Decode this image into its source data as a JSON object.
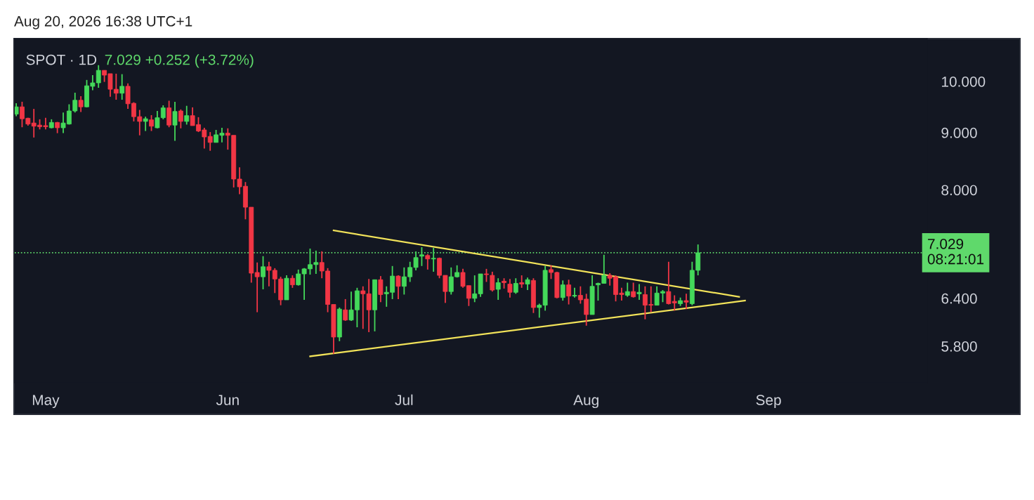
{
  "chart_data": {
    "type": "candlestick",
    "title": "SPOT · 1D",
    "subtitle": "7.029 +0.252 (+3.72%)",
    "annotations": [
      "Aug 20, 2026 16:38 UTC+1"
    ],
    "x": [
      "2026-04-26",
      "2026-04-27",
      "2026-04-28",
      "2026-04-29",
      "2026-04-30",
      "2026-05-01",
      "2026-05-02",
      "2026-05-03",
      "2026-05-04",
      "2026-05-05",
      "2026-05-06",
      "2026-05-07",
      "2026-05-08",
      "2026-05-09",
      "2026-05-10",
      "2026-05-11",
      "2026-05-12",
      "2026-05-13",
      "2026-05-14",
      "2026-05-15",
      "2026-05-16",
      "2026-05-17",
      "2026-05-18",
      "2026-05-19",
      "2026-05-20",
      "2026-05-21",
      "2026-05-22",
      "2026-05-23",
      "2026-05-24",
      "2026-05-25",
      "2026-05-26",
      "2026-05-27",
      "2026-05-28",
      "2026-05-29",
      "2026-05-30",
      "2026-05-31",
      "2026-06-01",
      "2026-06-02",
      "2026-06-03",
      "2026-06-04",
      "2026-06-05",
      "2026-06-06",
      "2026-06-07",
      "2026-06-08",
      "2026-06-09",
      "2026-06-10",
      "2026-06-11",
      "2026-06-12",
      "2026-06-13",
      "2026-06-14",
      "2026-06-15",
      "2026-06-16",
      "2026-06-17",
      "2026-06-18",
      "2026-06-19",
      "2026-06-20",
      "2026-06-21",
      "2026-06-22",
      "2026-06-23",
      "2026-06-24",
      "2026-06-25",
      "2026-06-26",
      "2026-06-27",
      "2026-06-28",
      "2026-06-29",
      "2026-06-30",
      "2026-07-01",
      "2026-07-02",
      "2026-07-03",
      "2026-07-04",
      "2026-07-05",
      "2026-07-06",
      "2026-07-07",
      "2026-07-08",
      "2026-07-09",
      "2026-07-10",
      "2026-07-11",
      "2026-07-12",
      "2026-07-13",
      "2026-07-14",
      "2026-07-15",
      "2026-07-16",
      "2026-07-17",
      "2026-07-18",
      "2026-07-19",
      "2026-07-20",
      "2026-07-21",
      "2026-07-22",
      "2026-07-23",
      "2026-07-24",
      "2026-07-25",
      "2026-07-26",
      "2026-07-27",
      "2026-07-28",
      "2026-07-29",
      "2026-07-30",
      "2026-07-31",
      "2026-08-01",
      "2026-08-02",
      "2026-08-03",
      "2026-08-04",
      "2026-08-05",
      "2026-08-06",
      "2026-08-07",
      "2026-08-08",
      "2026-08-09",
      "2026-08-10",
      "2026-08-11",
      "2026-08-12",
      "2026-08-13",
      "2026-08-14",
      "2026-08-15",
      "2026-08-16",
      "2026-08-17",
      "2026-08-18",
      "2026-08-19",
      "2026-08-20"
    ],
    "ohlc": [
      [
        9.35,
        9.56,
        9.31,
        9.49
      ],
      [
        9.49,
        9.59,
        9.1,
        9.26
      ],
      [
        9.27,
        9.28,
        9.13,
        9.16
      ],
      [
        9.18,
        9.45,
        8.91,
        9.12
      ],
      [
        9.14,
        9.25,
        9.06,
        9.11
      ],
      [
        9.13,
        9.28,
        9.06,
        9.11
      ],
      [
        9.09,
        9.25,
        9.08,
        9.19
      ],
      [
        9.19,
        9.2,
        8.99,
        9.09
      ],
      [
        9.09,
        9.38,
        8.99,
        9.18
      ],
      [
        9.16,
        9.54,
        9.15,
        9.41
      ],
      [
        9.41,
        9.77,
        9.38,
        9.62
      ],
      [
        9.62,
        9.7,
        9.39,
        9.49
      ],
      [
        9.49,
        10.03,
        9.48,
        9.91
      ],
      [
        9.9,
        10.13,
        9.82,
        9.97
      ],
      [
        9.97,
        10.34,
        9.87,
        10.23
      ],
      [
        10.23,
        10.23,
        9.99,
        10.13
      ],
      [
        10.16,
        10.16,
        9.69,
        9.84
      ],
      [
        9.84,
        10.16,
        9.63,
        9.76
      ],
      [
        9.76,
        10.15,
        9.63,
        9.9
      ],
      [
        9.9,
        9.96,
        9.45,
        9.55
      ],
      [
        9.56,
        9.58,
        9.21,
        9.3
      ],
      [
        9.3,
        9.43,
        8.95,
        9.21
      ],
      [
        9.21,
        9.3,
        9.03,
        9.26
      ],
      [
        9.24,
        9.33,
        9.03,
        9.12
      ],
      [
        9.09,
        9.41,
        9.08,
        9.28
      ],
      [
        9.28,
        9.52,
        9.25,
        9.47
      ],
      [
        9.47,
        9.61,
        9.1,
        9.14
      ],
      [
        9.14,
        9.59,
        8.85,
        9.4
      ],
      [
        9.41,
        9.44,
        9.08,
        9.21
      ],
      [
        9.21,
        9.51,
        9.15,
        9.32
      ],
      [
        9.32,
        9.48,
        9.13,
        9.13
      ],
      [
        9.15,
        9.29,
        9.01,
        9.03
      ],
      [
        9.05,
        9.09,
        8.71,
        8.92
      ],
      [
        8.93,
        9.01,
        8.67,
        8.82
      ],
      [
        8.82,
        9.05,
        8.82,
        8.96
      ],
      [
        8.95,
        9.09,
        8.82,
        8.99
      ],
      [
        8.99,
        9.08,
        8.69,
        8.95
      ],
      [
        8.95,
        8.95,
        8.04,
        8.18
      ],
      [
        8.18,
        8.38,
        7.93,
        8.05
      ],
      [
        8.06,
        8.13,
        7.53,
        7.72
      ],
      [
        7.72,
        7.72,
        6.61,
        6.74
      ],
      [
        6.75,
        6.89,
        6.22,
        6.69
      ],
      [
        6.69,
        6.98,
        6.52,
        6.83
      ],
      [
        6.83,
        6.9,
        6.56,
        6.78
      ],
      [
        6.78,
        6.81,
        6.47,
        6.66
      ],
      [
        6.66,
        6.69,
        6.31,
        6.38
      ],
      [
        6.38,
        6.71,
        6.38,
        6.67
      ],
      [
        6.67,
        6.71,
        6.54,
        6.58
      ],
      [
        6.58,
        6.79,
        6.57,
        6.73
      ],
      [
        6.73,
        6.81,
        6.38,
        6.8
      ],
      [
        6.8,
        7.09,
        6.72,
        6.86
      ],
      [
        6.86,
        7.06,
        6.73,
        6.89
      ],
      [
        6.89,
        7.05,
        6.67,
        6.77
      ],
      [
        6.77,
        6.81,
        6.22,
        6.32
      ],
      [
        6.32,
        6.32,
        5.71,
        5.91
      ],
      [
        5.91,
        6.28,
        5.86,
        6.26
      ],
      [
        6.25,
        6.39,
        6.11,
        6.12
      ],
      [
        6.12,
        6.49,
        6.11,
        6.25
      ],
      [
        6.25,
        6.54,
        6.03,
        6.5
      ],
      [
        6.5,
        6.56,
        6.01,
        6.46
      ],
      [
        6.46,
        6.66,
        5.97,
        6.25
      ],
      [
        6.25,
        6.65,
        5.98,
        6.65
      ],
      [
        6.65,
        6.7,
        6.35,
        6.45
      ],
      [
        6.46,
        6.56,
        6.29,
        6.48
      ],
      [
        6.48,
        6.84,
        6.39,
        6.7
      ],
      [
        6.7,
        6.71,
        6.39,
        6.56
      ],
      [
        6.56,
        6.82,
        6.45,
        6.69
      ],
      [
        6.69,
        6.9,
        6.62,
        6.82
      ],
      [
        6.82,
        7.05,
        6.78,
        6.96
      ],
      [
        6.98,
        7.11,
        6.84,
        7.0
      ],
      [
        6.99,
        7.01,
        6.79,
        6.94
      ],
      [
        6.94,
        7.1,
        6.76,
        6.95
      ],
      [
        6.95,
        6.96,
        6.67,
        6.71
      ],
      [
        6.71,
        6.71,
        6.34,
        6.49
      ],
      [
        6.49,
        6.82,
        6.45,
        6.69
      ],
      [
        6.69,
        6.85,
        6.68,
        6.75
      ],
      [
        6.75,
        6.8,
        6.54,
        6.56
      ],
      [
        6.57,
        6.57,
        6.3,
        6.4
      ],
      [
        6.4,
        6.71,
        6.35,
        6.46
      ],
      [
        6.46,
        6.73,
        6.42,
        6.73
      ],
      [
        6.73,
        6.8,
        6.62,
        6.72
      ],
      [
        6.71,
        6.76,
        6.49,
        6.51
      ],
      [
        6.52,
        6.67,
        6.38,
        6.61
      ],
      [
        6.63,
        6.67,
        6.53,
        6.61
      ],
      [
        6.59,
        6.66,
        6.41,
        6.48
      ],
      [
        6.48,
        6.67,
        6.46,
        6.6
      ],
      [
        6.61,
        6.71,
        6.54,
        6.59
      ],
      [
        6.59,
        6.68,
        6.51,
        6.65
      ],
      [
        6.64,
        6.67,
        6.21,
        6.28
      ],
      [
        6.28,
        6.33,
        6.15,
        6.31
      ],
      [
        6.31,
        6.84,
        6.24,
        6.78
      ],
      [
        6.79,
        6.85,
        6.66,
        6.75
      ],
      [
        6.75,
        6.76,
        6.4,
        6.41
      ],
      [
        6.41,
        6.64,
        6.37,
        6.58
      ],
      [
        6.58,
        6.65,
        6.32,
        6.43
      ],
      [
        6.43,
        6.54,
        6.41,
        6.44
      ],
      [
        6.44,
        6.56,
        6.33,
        6.38
      ],
      [
        6.39,
        6.46,
        6.05,
        6.19
      ],
      [
        6.19,
        6.71,
        6.19,
        6.56
      ],
      [
        6.58,
        6.61,
        6.37,
        6.6
      ],
      [
        6.6,
        7.0,
        6.6,
        6.71
      ],
      [
        6.71,
        6.74,
        6.57,
        6.67
      ],
      [
        6.69,
        6.71,
        6.36,
        6.45
      ],
      [
        6.47,
        6.54,
        6.37,
        6.45
      ],
      [
        6.44,
        6.61,
        6.42,
        6.49
      ],
      [
        6.49,
        6.61,
        6.41,
        6.42
      ],
      [
        6.46,
        6.59,
        6.38,
        6.48
      ],
      [
        6.45,
        6.56,
        6.13,
        6.31
      ],
      [
        6.32,
        6.56,
        6.22,
        6.31
      ],
      [
        6.31,
        6.56,
        6.31,
        6.47
      ],
      [
        6.47,
        6.51,
        6.35,
        6.49
      ],
      [
        6.49,
        6.9,
        6.32,
        6.33
      ],
      [
        6.36,
        6.44,
        6.24,
        6.34
      ],
      [
        6.33,
        6.41,
        6.3,
        6.37
      ],
      [
        6.37,
        6.46,
        6.26,
        6.35
      ],
      [
        6.33,
        6.9,
        6.31,
        6.78
      ],
      [
        6.78,
        7.15,
        6.71,
        7.029
      ]
    ],
    "colors": [
      "#44d95a",
      "#f23645",
      "#f23645",
      "#f23645",
      "#f23645",
      "#f23645",
      "#44d95a",
      "#f23645",
      "#44d95a",
      "#44d95a",
      "#44d95a",
      "#f23645",
      "#44d95a",
      "#44d95a",
      "#44d95a",
      "#f23645",
      "#f23645",
      "#f23645",
      "#44d95a",
      "#f23645",
      "#f23645",
      "#f23645",
      "#44d95a",
      "#f23645",
      "#44d95a",
      "#44d95a",
      "#f23645",
      "#44d95a",
      "#f23645",
      "#44d95a",
      "#f23645",
      "#f23645",
      "#f23645",
      "#f23645",
      "#44d95a",
      "#44d95a",
      "#f23645",
      "#f23645",
      "#f23645",
      "#f23645",
      "#f23645",
      "#f23645",
      "#44d95a",
      "#f23645",
      "#f23645",
      "#f23645",
      "#44d95a",
      "#f23645",
      "#44d95a",
      "#44d95a",
      "#44d95a",
      "#44d95a",
      "#f23645",
      "#f23645",
      "#f23645",
      "#44d95a",
      "#f23645",
      "#44d95a",
      "#44d95a",
      "#f23645",
      "#f23645",
      "#44d95a",
      "#f23645",
      "#44d95a",
      "#44d95a",
      "#f23645",
      "#44d95a",
      "#44d95a",
      "#44d95a",
      "#44d95a",
      "#f23645",
      "#44d95a",
      "#f23645",
      "#f23645",
      "#44d95a",
      "#44d95a",
      "#f23645",
      "#f23645",
      "#44d95a",
      "#44d95a",
      "#f23645",
      "#f23645",
      "#44d95a",
      "#f23645",
      "#f23645",
      "#44d95a",
      "#f23645",
      "#44d95a",
      "#f23645",
      "#44d95a",
      "#44d95a",
      "#f23645",
      "#f23645",
      "#44d95a",
      "#f23645",
      "#44d95a",
      "#f23645",
      "#f23645",
      "#44d95a",
      "#44d95a",
      "#44d95a",
      "#f23645",
      "#f23645",
      "#f23645",
      "#44d95a",
      "#f23645",
      "#44d95a",
      "#f23645",
      "#f23645",
      "#44d95a",
      "#44d95a",
      "#f23645",
      "#f23645",
      "#44d95a",
      "#f23645",
      "#44d95a",
      "#44d95a"
    ],
    "series": [
      {
        "type": "line",
        "color": "#f2e35a",
        "x": [
          "2026-06-19",
          "2026-08-27"
        ],
        "values": [
          7.36,
          6.42
        ]
      },
      {
        "type": "line",
        "color": "#f2e35a",
        "x": [
          "2026-06-15",
          "2026-08-28"
        ],
        "values": [
          5.68,
          6.37
        ]
      }
    ],
    "ref_lines": [
      {
        "axis": "y",
        "value": 7.029,
        "label": "7.029\n08:21:01",
        "color": "#5fd96b",
        "line_style": "dotted"
      }
    ],
    "log": true,
    "xlim": [
      "2026-04-25T18:00",
      "2026-09-28"
    ],
    "xticks": [
      {
        "value": "2026-05-01",
        "label": "May"
      },
      {
        "value": "2026-06-01",
        "label": "Jun"
      },
      {
        "value": "2026-07-01",
        "label": "Jul"
      },
      {
        "value": "2026-08-01",
        "label": "Aug"
      },
      {
        "value": "2026-09-01",
        "label": "Sep"
      }
    ],
    "ylim": [
      5.38,
      10.92
    ],
    "yticks": [
      {
        "value": 5.8,
        "label": "5.800"
      },
      {
        "value": 6.4,
        "label": "6.400"
      },
      {
        "value": 8,
        "label": "8.000"
      },
      {
        "value": 9,
        "label": "9.000"
      },
      {
        "value": 10,
        "label": "10.000"
      }
    ],
    "grid": false
  }
}
